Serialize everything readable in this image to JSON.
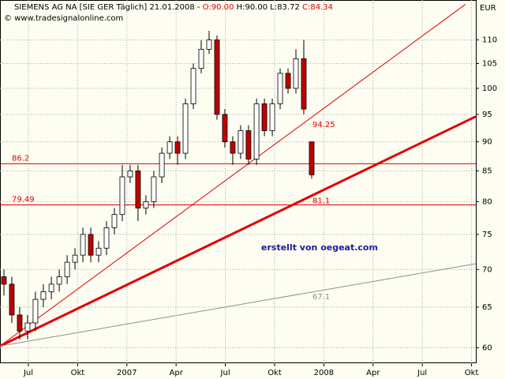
{
  "chart_data": {
    "type": "candlestick",
    "title": "SIEMENS AG NA [SIE GER  Täglich] 21.01.2008 -",
    "title_parts": [
      "O:90.00",
      "H:90.00 L:83.72",
      "C:84.34"
    ],
    "subtitle": "© www.tradesignalonline.com",
    "y_axis_label": "EUR",
    "annotation": "erstellt von oegeat.com",
    "log_scale": true,
    "grid": true,
    "xlim": [
      4.27,
      33.26
    ],
    "ylim": [
      58.2,
      119
    ],
    "xticks": [
      {
        "value": 6,
        "label": "Jul"
      },
      {
        "value": 9,
        "label": "Okt"
      },
      {
        "value": 12,
        "label": "2007"
      },
      {
        "value": 15,
        "label": "Apr"
      },
      {
        "value": 18,
        "label": "Jul"
      },
      {
        "value": 21,
        "label": "Okt"
      },
      {
        "value": 24,
        "label": "2008"
      },
      {
        "value": 27,
        "label": "Apr"
      },
      {
        "value": 30,
        "label": "Jul"
      },
      {
        "value": 33,
        "label": "Okt"
      }
    ],
    "yticks": [
      60,
      65,
      70,
      75,
      80,
      85,
      90,
      95,
      100,
      105,
      110
    ],
    "x": [
      4.51,
      4.99,
      5.47,
      5.95,
      6.43,
      6.91,
      7.4,
      7.88,
      8.36,
      8.84,
      9.32,
      9.8,
      10.28,
      10.76,
      11.24,
      11.72,
      12.2,
      12.68,
      13.16,
      13.64,
      14.13,
      14.61,
      15.09,
      15.57,
      16.05,
      16.53,
      17.01,
      17.49,
      17.97,
      18.45,
      18.93,
      19.41,
      19.9,
      20.38,
      20.86,
      21.34,
      21.82,
      22.3,
      22.78,
      23.26
    ],
    "open": [
      69,
      68,
      64,
      62,
      63,
      66,
      67,
      68,
      69,
      71,
      72,
      75,
      72,
      73,
      76,
      78,
      84,
      85,
      79,
      80,
      84,
      88,
      90,
      88,
      97,
      104,
      108,
      110,
      95,
      90,
      88,
      92,
      87,
      97,
      92,
      97,
      103,
      100,
      106,
      90
    ],
    "high": [
      70,
      69,
      65,
      64,
      67,
      68,
      69,
      70,
      72,
      73,
      76,
      76,
      74,
      77,
      79,
      86,
      86,
      86,
      81,
      85,
      89,
      91,
      91,
      98,
      105,
      110,
      112,
      111,
      96,
      91,
      93,
      93,
      98,
      98,
      98,
      104,
      104,
      108,
      110,
      90
    ],
    "low": [
      66.5,
      63,
      61,
      61,
      62,
      65,
      66,
      67,
      68,
      70,
      71,
      71,
      71,
      72,
      75,
      77,
      83,
      77,
      78,
      79,
      83,
      87,
      86,
      87,
      96,
      103,
      107,
      94,
      89,
      86,
      87,
      86,
      86,
      91,
      91,
      96,
      99,
      99,
      95,
      83.72
    ],
    "close": [
      68,
      64,
      62,
      63,
      66,
      67,
      68,
      69,
      71,
      72,
      75,
      72,
      73,
      76,
      78,
      84,
      85,
      79,
      80,
      84,
      88,
      90,
      88,
      97,
      104,
      108,
      110,
      95,
      90,
      88,
      92,
      87,
      97,
      92,
      97,
      103,
      100,
      106,
      96,
      84.34
    ],
    "up_color": "#ffffff",
    "down_color": "#c00000",
    "hlines": [
      86.2,
      79.49
    ],
    "hline_color": "#e00000",
    "trendlines": [
      {
        "x": [
          4.27,
          32.63
        ],
        "y": [
          60.2,
          118
        ],
        "color": "#e00000",
        "width": 1,
        "label": 94.25,
        "label_y": 93.1
      },
      {
        "x": [
          4.27,
          33.26
        ],
        "y": [
          60.2,
          94.6
        ],
        "color": "#e00000",
        "width": 3,
        "label": 81.1,
        "label_y": 80.1
      },
      {
        "x": [
          4.27,
          33.26
        ],
        "y": [
          60.2,
          70.8
        ],
        "color": "#909090",
        "width": 1,
        "label": 67.1,
        "label_y": 66.3
      }
    ]
  }
}
